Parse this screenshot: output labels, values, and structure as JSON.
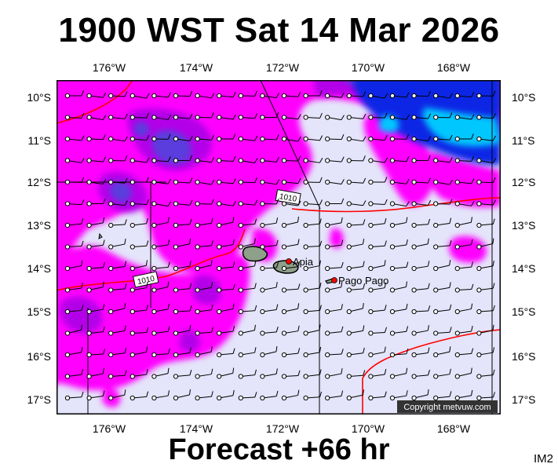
{
  "title": "1900 WST Sat 14 Mar 2026",
  "subtitle": "Forecast +66 hr",
  "image_tag": "IM2",
  "copyright": "Copyright metvuw.com",
  "lon_labels": [
    "176°W",
    "174°W",
    "172°W",
    "170°W",
    "168°W"
  ],
  "lat_labels": [
    "10°S",
    "11°S",
    "12°S",
    "13°S",
    "14°S",
    "15°S",
    "16°S",
    "17°S"
  ],
  "places": {
    "apia": "Apia",
    "pago": "Pago Pago"
  },
  "isobars": [
    "1010",
    "1010"
  ],
  "colors": {
    "background": "#e4e4fa",
    "rain_light": "#ff00ff",
    "rain_mid": "#b400e8",
    "rain_heavy": "#5a3cdc",
    "rain_very_heavy": "#0a28e6",
    "rain_extreme": "#00c8ff",
    "isobar": "#ff0000"
  },
  "map": {
    "lon_range": [
      -177.2,
      -166.8
    ],
    "lat_range": [
      -17.35,
      -9.6
    ]
  }
}
